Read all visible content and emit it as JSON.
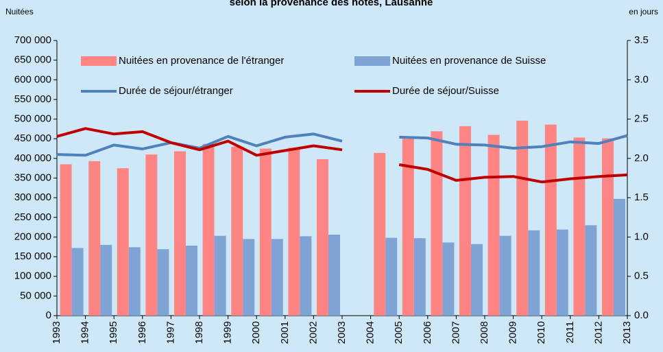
{
  "chart_data": {
    "type": "bar-line",
    "title": "selon la provenance des hôtes, Lausanne",
    "y_label": "Nuitées",
    "y2_label": "en jours",
    "categories": [
      "1993",
      "1994",
      "1995",
      "1996",
      "1997",
      "1998",
      "1999",
      "2000",
      "2001",
      "2002",
      "2003",
      "2004",
      "2005",
      "2006",
      "2007",
      "2008",
      "2009",
      "2010",
      "2011",
      "2012",
      "2013"
    ],
    "series": [
      {
        "name": "Nuitées en provenance de l'étranger",
        "kind": "bar",
        "color": "#ff8585",
        "values": [
          null,
          385000,
          393000,
          375000,
          410000,
          418000,
          437000,
          430000,
          425000,
          427000,
          398000,
          null,
          414000,
          450000,
          469000,
          482000,
          460000,
          496000,
          486000,
          453000,
          451000
        ]
      },
      {
        "name": "Nuitées en provenance de Suisse",
        "kind": "bar",
        "color": "#7fa3d4",
        "values": [
          null,
          172000,
          180000,
          174000,
          169000,
          178000,
          203000,
          195000,
          195000,
          202000,
          206000,
          null,
          198000,
          197000,
          186000,
          182000,
          203000,
          217000,
          219000,
          230000,
          297000
        ]
      },
      {
        "name": "Durée de séjour/étranger",
        "kind": "line",
        "axis": "y2",
        "color": "#4f81bd",
        "values": [
          2.05,
          2.04,
          2.17,
          2.12,
          2.2,
          2.13,
          2.28,
          2.16,
          2.27,
          2.31,
          2.22,
          null,
          2.27,
          2.26,
          2.18,
          2.17,
          2.13,
          2.15,
          2.21,
          2.19,
          2.29
        ]
      },
      {
        "name": "Durée de séjour/Suisse",
        "kind": "line",
        "axis": "y2",
        "color": "#c00000",
        "values": [
          2.28,
          2.38,
          2.31,
          2.34,
          2.2,
          2.11,
          2.22,
          2.04,
          2.1,
          2.16,
          2.11,
          null,
          1.92,
          1.86,
          1.72,
          1.76,
          1.77,
          1.7,
          1.74,
          1.77,
          1.79
        ]
      }
    ],
    "ylim": [
      0,
      700000
    ],
    "yticks": [
      0,
      {
        "value": 50000,
        "label": "50 000"
      },
      {
        "value": 100000,
        "label": "100 000"
      },
      {
        "value": 150000,
        "label": "150 000"
      },
      {
        "value": 200000,
        "label": "200 000"
      },
      {
        "value": 250000,
        "label": "250 000"
      },
      {
        "value": 300000,
        "label": "300 000"
      },
      {
        "value": 350000,
        "label": "350 000"
      },
      {
        "value": 400000,
        "label": "400 000"
      },
      {
        "value": 450000,
        "label": "450 000"
      },
      {
        "value": 500000,
        "label": "500 000"
      },
      {
        "value": 550000,
        "label": "550 000"
      },
      {
        "value": 600000,
        "label": "600 000"
      },
      {
        "value": 650000,
        "label": "650 000"
      },
      {
        "value": 700000,
        "label": "700 000"
      }
    ],
    "y2lim": [
      0,
      3.5
    ],
    "y2ticks": [
      {
        "value": 0,
        "label": "0.0"
      },
      0.5,
      {
        "value": 1,
        "label": "1.0"
      },
      1.5,
      {
        "value": 2,
        "label": "2.0"
      },
      2.5,
      {
        "value": 3,
        "label": "3.0"
      },
      3.5
    ],
    "grid": false
  }
}
